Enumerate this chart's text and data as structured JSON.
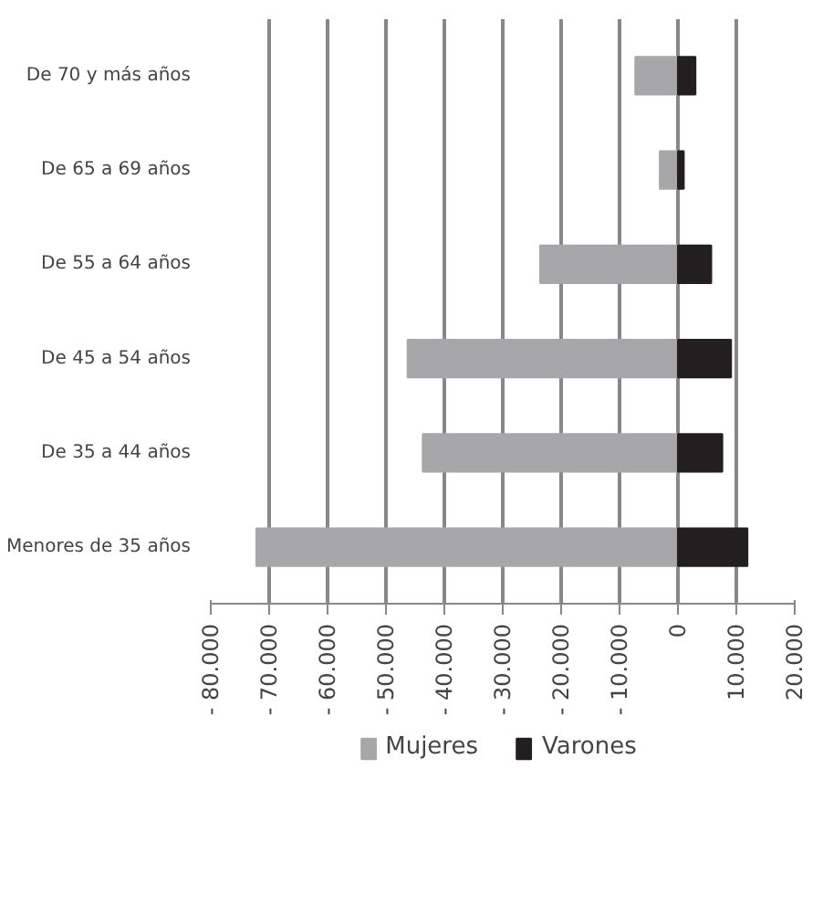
{
  "chart_data": {
    "type": "bar",
    "orientation": "horizontal",
    "stacked": true,
    "categories": [
      "De 70 y más años",
      "De 65 a 69 años",
      "De 55 a 64 años",
      "De 45 a 54 años",
      "De 35 a 44 años",
      "Menores de 35 años"
    ],
    "series": [
      {
        "name": "Mujeres",
        "color": "#a7a7a9",
        "values": [
          -7300,
          -3100,
          -23600,
          -46300,
          -43700,
          -72200
        ]
      },
      {
        "name": "Varones",
        "color": "#231f20",
        "values": [
          3000,
          1000,
          5700,
          9100,
          7600,
          11900
        ]
      }
    ],
    "xlim": [
      -80000,
      20000
    ],
    "xticks": [
      {
        "value": -80000,
        "label": "- 80.000"
      },
      {
        "value": -70000,
        "label": "- 70.000"
      },
      {
        "value": -60000,
        "label": "- 60.000"
      },
      {
        "value": -50000,
        "label": "- 50.000"
      },
      {
        "value": -40000,
        "label": "- 40.000"
      },
      {
        "value": -30000,
        "label": "- 30.000"
      },
      {
        "value": -20000,
        "label": "- 20.000"
      },
      {
        "value": -10000,
        "label": "- 10.000"
      },
      0,
      {
        "value": 10000,
        "label": "10.000"
      },
      {
        "value": 20000,
        "label": "20.000"
      }
    ],
    "grid": "x",
    "legend": "bottom"
  }
}
